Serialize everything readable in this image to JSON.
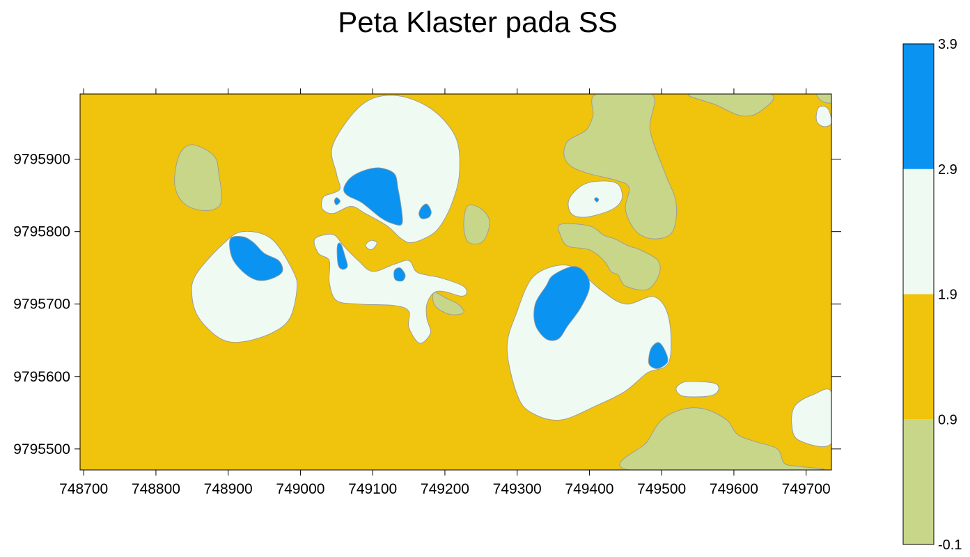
{
  "chart_data": {
    "type": "heatmap",
    "title": "Peta Klaster pada SS",
    "xlabel": "",
    "ylabel": "",
    "xlim": [
      748695,
      749735
    ],
    "ylim": [
      9795471,
      9795990
    ],
    "x_ticks": [
      748700,
      748800,
      748900,
      749000,
      749100,
      749200,
      749300,
      749400,
      749500,
      749600,
      749700
    ],
    "y_ticks": [
      9795500,
      9795600,
      9795700,
      9795800,
      9795900
    ],
    "x_tick_labels": [
      "748700",
      "748800",
      "748900",
      "749000",
      "749100",
      "749200",
      "749300",
      "749400",
      "749500",
      "749600",
      "749700"
    ],
    "y_tick_labels": [
      "9795500",
      "9795600",
      "9795700",
      "9795800",
      "9795900"
    ],
    "grid": false,
    "colorbar": {
      "placement": "right",
      "levels": [
        -0.1,
        0.9,
        1.9,
        2.9,
        3.9
      ],
      "level_labels": [
        "-0.1",
        "0.9",
        "1.9",
        "2.9",
        "3.9"
      ],
      "colors": [
        "#c8d68a",
        "#f0c30c",
        "#eefaf2",
        "#0a93f0"
      ]
    },
    "background_class_value": 1.4,
    "regions": [
      {
        "class": 0,
        "pts": [
          [
            748832,
            9795905
          ],
          [
            748850,
            9795920
          ],
          [
            748880,
            9795905
          ],
          [
            748887,
            9795880
          ],
          [
            748890,
            9795840
          ],
          [
            748870,
            9795829
          ],
          [
            748840,
            9795838
          ],
          [
            748826,
            9795865
          ]
        ]
      },
      {
        "class": 0,
        "pts": [
          [
            749232,
            9795836
          ],
          [
            749252,
            9795830
          ],
          [
            749262,
            9795812
          ],
          [
            749252,
            9795786
          ],
          [
            749232,
            9795786
          ],
          [
            749226,
            9795810
          ]
        ]
      },
      {
        "class": 0,
        "pts": [
          [
            749185,
            9795716
          ],
          [
            749202,
            9795708
          ],
          [
            749218,
            9795700
          ],
          [
            749226,
            9795688
          ],
          [
            749206,
            9795686
          ],
          [
            749186,
            9795698
          ]
        ]
      },
      {
        "class": 0,
        "pts": [
          [
            749410,
            9795990
          ],
          [
            749486,
            9795990
          ],
          [
            749484,
            9795940
          ],
          [
            749505,
            9795880
          ],
          [
            749520,
            9795840
          ],
          [
            749515,
            9795800
          ],
          [
            749490,
            9795790
          ],
          [
            749465,
            9795800
          ],
          [
            749450,
            9795830
          ],
          [
            749455,
            9795860
          ],
          [
            749440,
            9795870
          ],
          [
            749400,
            9795880
          ],
          [
            749375,
            9795890
          ],
          [
            749365,
            9795905
          ],
          [
            749370,
            9795925
          ],
          [
            749395,
            9795940
          ],
          [
            749405,
            9795960
          ]
        ]
      },
      {
        "class": 0,
        "pts": [
          [
            749360,
            9795810
          ],
          [
            749400,
            9795808
          ],
          [
            749420,
            9795795
          ],
          [
            749435,
            9795790
          ],
          [
            749455,
            9795780
          ],
          [
            749470,
            9795775
          ],
          [
            749495,
            9795760
          ],
          [
            749496,
            9795740
          ],
          [
            749480,
            9795720
          ],
          [
            749450,
            9795725
          ],
          [
            749440,
            9795740
          ],
          [
            749430,
            9795745
          ],
          [
            749420,
            9795760
          ],
          [
            749400,
            9795775
          ],
          [
            749370,
            9795780
          ],
          [
            749360,
            9795795
          ]
        ]
      },
      {
        "class": 0,
        "pts": [
          [
            749540,
            9795990
          ],
          [
            749650,
            9795990
          ],
          [
            749635,
            9795965
          ],
          [
            749610,
            9795960
          ],
          [
            749575,
            9795975
          ]
        ]
      },
      {
        "class": 0,
        "pts": [
          [
            749715,
            9795990
          ],
          [
            749735,
            9795990
          ],
          [
            749735,
            9795978
          ],
          [
            749722,
            9795980
          ]
        ]
      },
      {
        "class": 0,
        "pts": [
          [
            749455,
            9795471
          ],
          [
            749710,
            9795471
          ],
          [
            749690,
            9795476
          ],
          [
            749670,
            9795480
          ],
          [
            749660,
            9795500
          ],
          [
            749630,
            9795510
          ],
          [
            749605,
            9795520
          ],
          [
            749590,
            9795540
          ],
          [
            749560,
            9795555
          ],
          [
            749530,
            9795555
          ],
          [
            749500,
            9795540
          ],
          [
            749480,
            9795510
          ]
        ]
      },
      {
        "class": 2,
        "pts": [
          [
            749045,
            9795920
          ],
          [
            749085,
            9795975
          ],
          [
            749130,
            9795988
          ],
          [
            749180,
            9795970
          ],
          [
            749215,
            9795930
          ],
          [
            749220,
            9795880
          ],
          [
            749210,
            9795840
          ],
          [
            749195,
            9795810
          ],
          [
            749180,
            9795795
          ],
          [
            749155,
            9795785
          ],
          [
            749140,
            9795790
          ],
          [
            749120,
            9795808
          ],
          [
            749090,
            9795825
          ],
          [
            749070,
            9795835
          ],
          [
            749045,
            9795825
          ],
          [
            749030,
            9795832
          ],
          [
            749032,
            9795848
          ],
          [
            749045,
            9795853
          ],
          [
            749055,
            9795860
          ],
          [
            749050,
            9795880
          ]
        ]
      },
      {
        "class": 2,
        "pts": [
          [
            748892,
            9795782
          ],
          [
            748920,
            9795800
          ],
          [
            748960,
            9795790
          ],
          [
            748990,
            9795745
          ],
          [
            748995,
            9795720
          ],
          [
            748985,
            9795680
          ],
          [
            748960,
            9795660
          ],
          [
            748920,
            9795648
          ],
          [
            748890,
            9795652
          ],
          [
            748860,
            9795680
          ],
          [
            748850,
            9795710
          ],
          [
            748855,
            9795740
          ]
        ]
      },
      {
        "class": 2,
        "pts": [
          [
            749020,
            9795790
          ],
          [
            749045,
            9795796
          ],
          [
            749060,
            9795780
          ],
          [
            749080,
            9795760
          ],
          [
            749100,
            9795745
          ],
          [
            749130,
            9795755
          ],
          [
            749150,
            9795760
          ],
          [
            749160,
            9795745
          ],
          [
            749175,
            9795740
          ],
          [
            749195,
            9795736
          ],
          [
            749225,
            9795725
          ],
          [
            749230,
            9795715
          ],
          [
            749222,
            9795711
          ],
          [
            749200,
            9795717
          ],
          [
            749185,
            9795716
          ],
          [
            749175,
            9795700
          ],
          [
            749175,
            9795680
          ],
          [
            749180,
            9795660
          ],
          [
            749165,
            9795646
          ],
          [
            749150,
            9795668
          ],
          [
            749150,
            9795690
          ],
          [
            749130,
            9795698
          ],
          [
            749080,
            9795700
          ],
          [
            749050,
            9795705
          ],
          [
            749040,
            9795730
          ],
          [
            749040,
            9795760
          ],
          [
            749025,
            9795770
          ]
        ]
      },
      {
        "class": 2,
        "pts": [
          [
            749090,
            9795781
          ],
          [
            749098,
            9795788
          ],
          [
            749106,
            9795784
          ],
          [
            749098,
            9795775
          ]
        ]
      },
      {
        "class": 2,
        "pts": [
          [
            749286,
            9795640
          ],
          [
            749300,
            9795690
          ],
          [
            749320,
            9795735
          ],
          [
            749350,
            9795752
          ],
          [
            749380,
            9795750
          ],
          [
            749415,
            9795720
          ],
          [
            749450,
            9795700
          ],
          [
            749490,
            9795710
          ],
          [
            749510,
            9795680
          ],
          [
            749510,
            9795620
          ],
          [
            749480,
            9795605
          ],
          [
            749450,
            9795580
          ],
          [
            749410,
            9795560
          ],
          [
            749360,
            9795540
          ],
          [
            749320,
            9795550
          ],
          [
            749300,
            9795575
          ]
        ]
      },
      {
        "class": 2,
        "pts": [
          [
            749372,
            9795845
          ],
          [
            749392,
            9795865
          ],
          [
            749420,
            9795870
          ],
          [
            749440,
            9795865
          ],
          [
            749445,
            9795845
          ],
          [
            749430,
            9795830
          ],
          [
            749395,
            9795820
          ],
          [
            749375,
            9795825
          ]
        ]
      },
      {
        "class": 2,
        "pts": [
          [
            749520,
            9795583
          ],
          [
            749530,
            9795592
          ],
          [
            749550,
            9795593
          ],
          [
            749575,
            9795590
          ],
          [
            749578,
            9795580
          ],
          [
            749565,
            9795573
          ],
          [
            749530,
            9795573
          ]
        ]
      },
      {
        "class": 2,
        "pts": [
          [
            749735,
            9795578
          ],
          [
            749710,
            9795575
          ],
          [
            749685,
            9795560
          ],
          [
            749680,
            9795535
          ],
          [
            749690,
            9795512
          ],
          [
            749735,
            9795508
          ]
        ]
      },
      {
        "class": 2,
        "pts": [
          [
            749714,
            9795960
          ],
          [
            749718,
            9795972
          ],
          [
            749730,
            9795970
          ],
          [
            749735,
            9795950
          ],
          [
            749725,
            9795945
          ],
          [
            749716,
            9795950
          ]
        ]
      },
      {
        "class": 3,
        "pts": [
          [
            749060,
            9795860
          ],
          [
            749070,
            9795875
          ],
          [
            749090,
            9795885
          ],
          [
            749110,
            9795888
          ],
          [
            749130,
            9795880
          ],
          [
            749135,
            9795860
          ],
          [
            749140,
            9795830
          ],
          [
            749140,
            9795810
          ],
          [
            749125,
            9795812
          ],
          [
            749110,
            9795820
          ],
          [
            749085,
            9795840
          ],
          [
            749065,
            9795850
          ]
        ]
      },
      {
        "class": 3,
        "pts": [
          [
            749047,
            9795842
          ],
          [
            749050,
            9795847
          ],
          [
            749055,
            9795842
          ],
          [
            749050,
            9795837
          ]
        ]
      },
      {
        "class": 3,
        "pts": [
          [
            749168,
            9795834
          ],
          [
            749175,
            9795838
          ],
          [
            749181,
            9795828
          ],
          [
            749178,
            9795820
          ],
          [
            749168,
            9795818
          ],
          [
            749164,
            9795825
          ]
        ]
      },
      {
        "class": 3,
        "pts": [
          [
            748903,
            9795790
          ],
          [
            748920,
            9795793
          ],
          [
            748935,
            9795785
          ],
          [
            748950,
            9795770
          ],
          [
            748970,
            9795760
          ],
          [
            748975,
            9795745
          ],
          [
            748960,
            9795735
          ],
          [
            748940,
            9795733
          ],
          [
            748920,
            9795745
          ],
          [
            748905,
            9795765
          ]
        ]
      },
      {
        "class": 3,
        "pts": [
          [
            749051,
            9795780
          ],
          [
            749056,
            9795783
          ],
          [
            749062,
            9795765
          ],
          [
            749065,
            9795752
          ],
          [
            749058,
            9795748
          ],
          [
            749052,
            9795755
          ]
        ]
      },
      {
        "class": 3,
        "pts": [
          [
            749130,
            9795746
          ],
          [
            749138,
            9795750
          ],
          [
            749145,
            9795740
          ],
          [
            749141,
            9795732
          ],
          [
            749131,
            9795734
          ]
        ]
      },
      {
        "class": 3,
        "pts": [
          [
            749325,
            9795700
          ],
          [
            749340,
            9795725
          ],
          [
            749350,
            9795740
          ],
          [
            749378,
            9795752
          ],
          [
            749395,
            9795742
          ],
          [
            749400,
            9795722
          ],
          [
            749388,
            9795695
          ],
          [
            749370,
            9795670
          ],
          [
            749357,
            9795652
          ],
          [
            749340,
            9795652
          ],
          [
            749325,
            9795672
          ]
        ]
      },
      {
        "class": 3,
        "pts": [
          [
            749482,
            9795624
          ],
          [
            749486,
            9795640
          ],
          [
            749496,
            9795647
          ],
          [
            749505,
            9795635
          ],
          [
            749508,
            9795620
          ],
          [
            749495,
            9795611
          ],
          [
            749484,
            9795615
          ]
        ]
      },
      {
        "class": 3,
        "pts": [
          [
            749407,
            9795845
          ],
          [
            749410,
            9795847
          ],
          [
            749413,
            9795844
          ],
          [
            749410,
            9795841
          ]
        ]
      }
    ]
  }
}
